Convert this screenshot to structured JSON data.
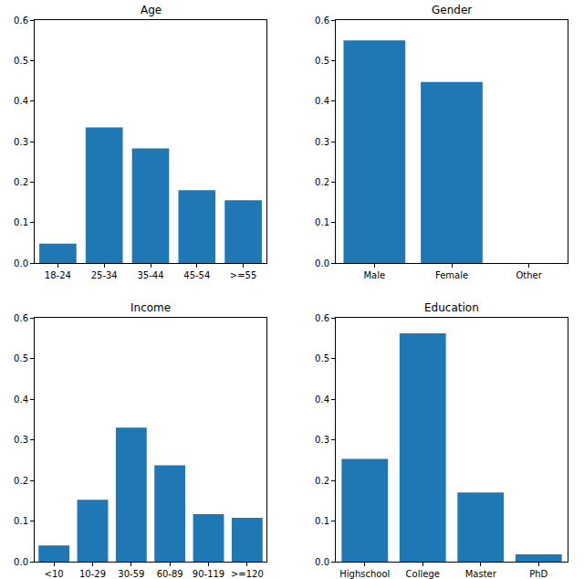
{
  "chart_data": [
    {
      "type": "bar",
      "title": "Age",
      "categories": [
        "18-24",
        "25-34",
        "35-44",
        "45-54",
        ">=55"
      ],
      "values": [
        0.048,
        0.335,
        0.283,
        0.18,
        0.155
      ],
      "color": "#1f77b4",
      "ylim": [
        0,
        0.6
      ],
      "yticks": [
        {
          "value": 0,
          "label": "0.0"
        },
        0.1,
        0.2,
        0.3,
        0.4,
        0.5,
        0.6
      ],
      "grid": false
    },
    {
      "type": "bar",
      "title": "Gender",
      "categories": [
        "Male",
        "Female",
        "Other"
      ],
      "values": [
        0.55,
        0.447,
        0
      ],
      "color": "#1f77b4",
      "ylim": [
        0,
        0.6
      ],
      "yticks": [
        {
          "value": 0,
          "label": "0.0"
        },
        0.1,
        0.2,
        0.3,
        0.4,
        0.5,
        0.6
      ],
      "grid": false
    },
    {
      "type": "bar",
      "title": "Income",
      "categories": [
        "<10",
        "10-29",
        "30-59",
        "60-89",
        "90-119",
        ">=120"
      ],
      "values": [
        0.04,
        0.152,
        0.33,
        0.237,
        0.117,
        0.108
      ],
      "color": "#1f77b4",
      "ylim": [
        0,
        0.6
      ],
      "yticks": [
        {
          "value": 0,
          "label": "0.0"
        },
        0.1,
        0.2,
        0.3,
        0.4,
        0.5,
        0.6
      ],
      "grid": false
    },
    {
      "type": "bar",
      "title": "Education",
      "categories": [
        "Highschool",
        "College",
        "Master",
        "PhD"
      ],
      "values": [
        0.253,
        0.562,
        0.17,
        0.018
      ],
      "color": "#1f77b4",
      "ylim": [
        0,
        0.6
      ],
      "yticks": [
        {
          "value": 0,
          "label": "0.0"
        },
        0.1,
        0.2,
        0.3,
        0.4,
        0.5,
        0.6
      ],
      "grid": false
    }
  ]
}
